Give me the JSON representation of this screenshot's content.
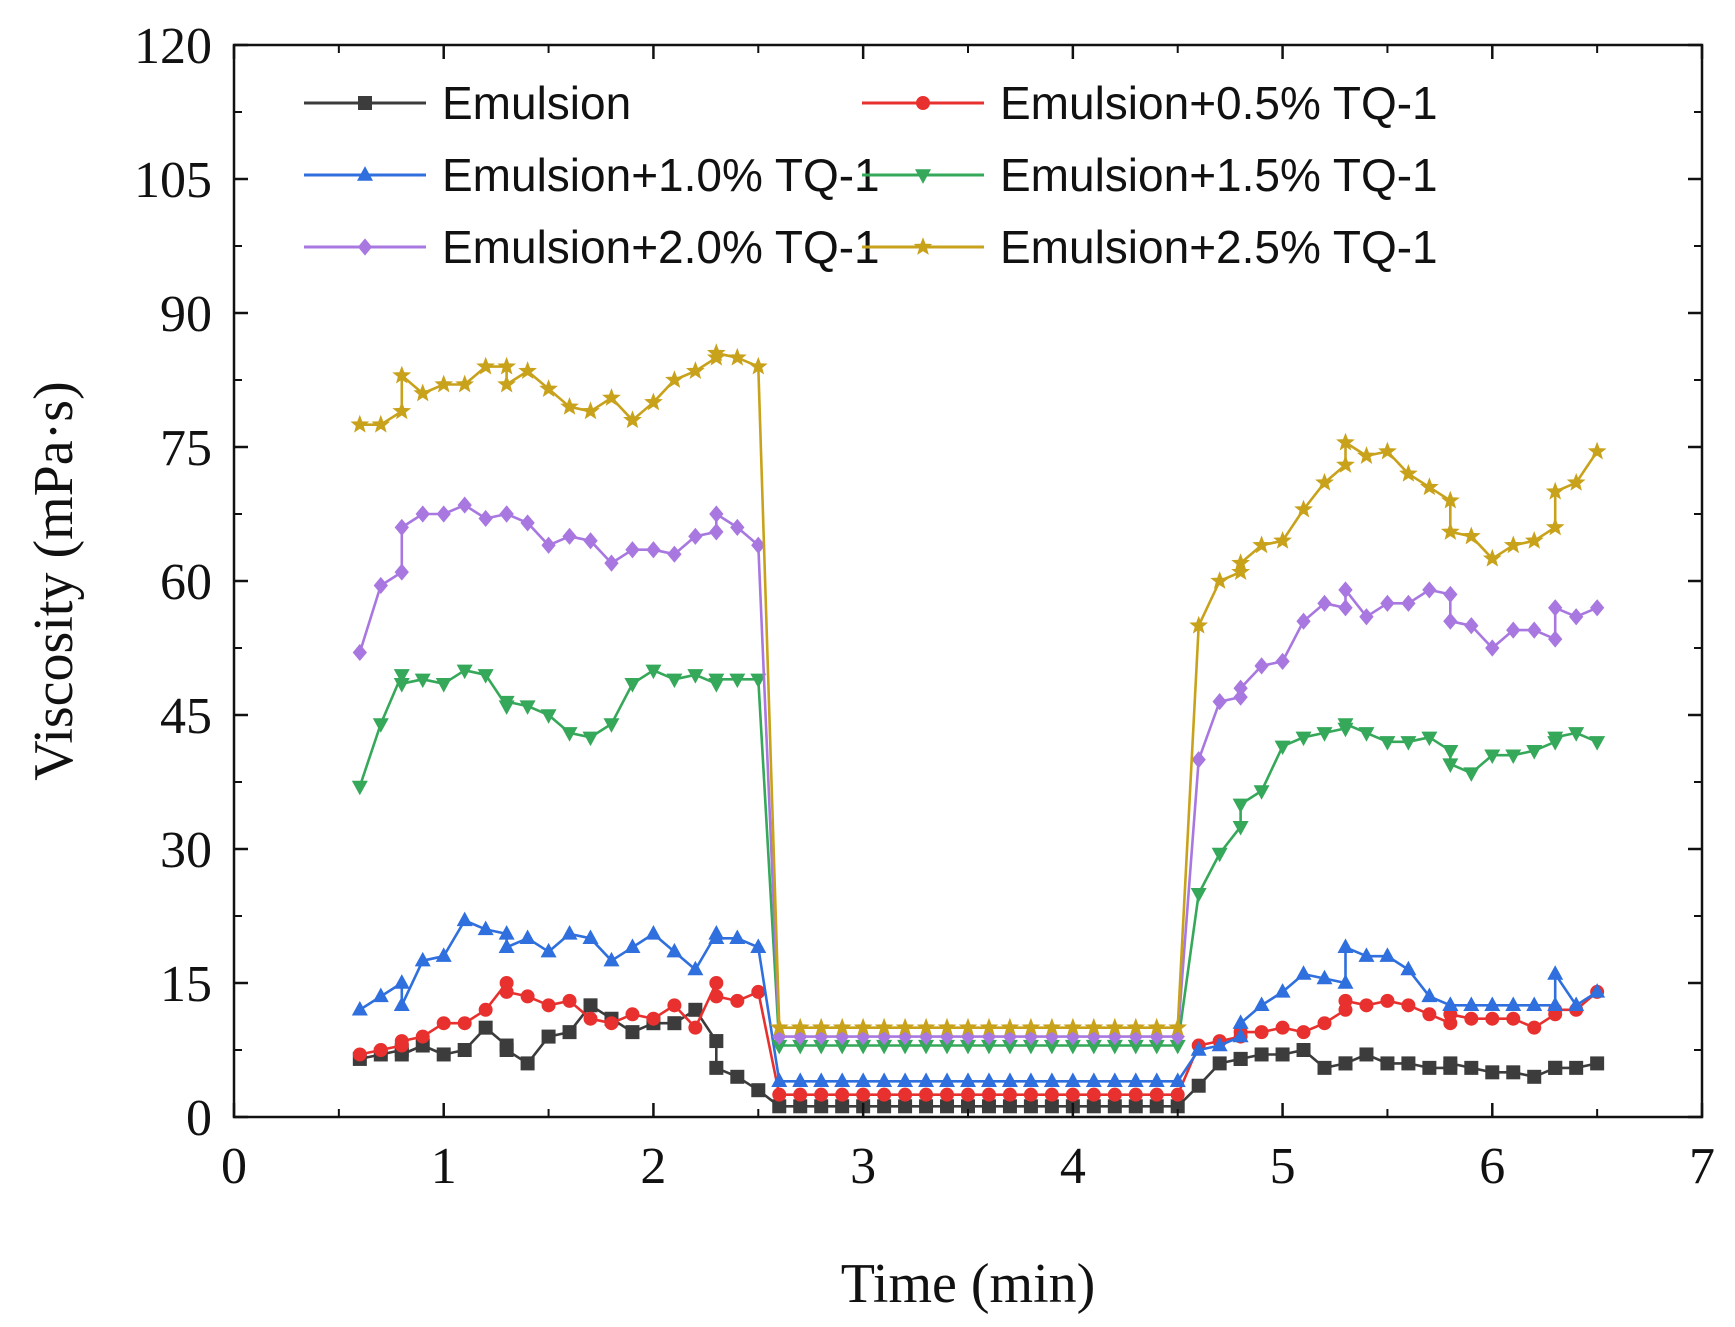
{
  "chart_data": {
    "type": "line",
    "title": "",
    "xlabel": "Time (min)",
    "ylabel": "Viscosity (mPa·s)",
    "xlim": [
      0,
      7
    ],
    "ylim": [
      0,
      120
    ],
    "xticks": [
      0,
      1,
      2,
      3,
      4,
      5,
      6,
      7
    ],
    "yticks": [
      0,
      15,
      30,
      45,
      60,
      75,
      90,
      105,
      120
    ],
    "grid": false,
    "legend_position": "top",
    "x": [
      0.6,
      0.7,
      0.8,
      0.8,
      0.9,
      1.0,
      1.1,
      1.2,
      1.3,
      1.3,
      1.4,
      1.5,
      1.6,
      1.7,
      1.8,
      1.9,
      2.0,
      2.1,
      2.2,
      2.3,
      2.3,
      2.4,
      2.5,
      2.6,
      2.7,
      2.8,
      2.9,
      3.0,
      3.1,
      3.2,
      3.3,
      3.4,
      3.5,
      3.6,
      3.7,
      3.8,
      3.9,
      4.0,
      4.1,
      4.2,
      4.3,
      4.4,
      4.5,
      4.6,
      4.7,
      4.8,
      4.8,
      4.9,
      5.0,
      5.1,
      5.2,
      5.3,
      5.3,
      5.4,
      5.5,
      5.6,
      5.7,
      5.8,
      5.8,
      5.9,
      6.0,
      6.1,
      6.2,
      6.3,
      6.3,
      6.4,
      6.5
    ],
    "series": [
      {
        "name": "Emulsion",
        "color": "#3c3c3c",
        "marker": "square",
        "values": [
          6.5,
          7.0,
          7.5,
          7.0,
          8.0,
          7.0,
          7.5,
          10.0,
          8.0,
          7.5,
          6.0,
          9.0,
          9.5,
          12.5,
          11.0,
          9.5,
          10.5,
          10.5,
          12.0,
          8.5,
          5.5,
          4.5,
          3.0,
          1.2,
          1.2,
          1.2,
          1.2,
          1.2,
          1.2,
          1.2,
          1.2,
          1.2,
          1.2,
          1.2,
          1.2,
          1.2,
          1.2,
          1.2,
          1.2,
          1.2,
          1.2,
          1.2,
          1.2,
          3.5,
          6.0,
          6.5,
          6.5,
          7.0,
          7.0,
          7.5,
          5.5,
          6.0,
          6.0,
          7.0,
          6.0,
          6.0,
          5.5,
          5.5,
          6.0,
          5.5,
          5.0,
          5.0,
          4.5,
          5.5,
          5.5,
          5.5,
          6.0
        ]
      },
      {
        "name": "Emulsion+0.5% TQ-1",
        "color": "#e8312f",
        "marker": "circle",
        "values": [
          7.0,
          7.5,
          8.0,
          8.5,
          9.0,
          10.5,
          10.5,
          12.0,
          15.0,
          14.0,
          13.5,
          12.5,
          13.0,
          11.0,
          10.5,
          11.5,
          11.0,
          12.5,
          10.0,
          15.0,
          13.5,
          13.0,
          14.0,
          2.5,
          2.5,
          2.5,
          2.5,
          2.5,
          2.5,
          2.5,
          2.5,
          2.5,
          2.5,
          2.5,
          2.5,
          2.5,
          2.5,
          2.5,
          2.5,
          2.5,
          2.5,
          2.5,
          2.5,
          8.0,
          8.5,
          9.0,
          9.5,
          9.5,
          10.0,
          9.5,
          10.5,
          12.0,
          13.0,
          12.5,
          13.0,
          12.5,
          11.5,
          10.5,
          11.5,
          11.0,
          11.0,
          11.0,
          10.0,
          11.5,
          12.0,
          12.0,
          14.0
        ]
      },
      {
        "name": "Emulsion+1.0% TQ-1",
        "color": "#2f6fde",
        "marker": "triangle-up",
        "values": [
          12.0,
          13.5,
          15.0,
          12.5,
          17.5,
          18.0,
          22.0,
          21.0,
          20.5,
          19.0,
          20.0,
          18.5,
          20.5,
          20.0,
          17.5,
          19.0,
          20.5,
          18.5,
          16.5,
          20.5,
          20.0,
          20.0,
          19.0,
          4.0,
          4.0,
          4.0,
          4.0,
          4.0,
          4.0,
          4.0,
          4.0,
          4.0,
          4.0,
          4.0,
          4.0,
          4.0,
          4.0,
          4.0,
          4.0,
          4.0,
          4.0,
          4.0,
          4.0,
          7.5,
          8.0,
          9.0,
          10.5,
          12.5,
          14.0,
          16.0,
          15.5,
          15.0,
          19.0,
          18.0,
          18.0,
          16.5,
          13.5,
          12.5,
          12.5,
          12.5,
          12.5,
          12.5,
          12.5,
          12.5,
          16.0,
          12.5,
          14.0
        ]
      },
      {
        "name": "Emulsion+1.5% TQ-1",
        "color": "#35a85a",
        "marker": "triangle-down",
        "values": [
          37.0,
          44.0,
          49.5,
          48.5,
          49.0,
          48.5,
          50.0,
          49.5,
          46.0,
          46.5,
          46.0,
          45.0,
          43.0,
          42.5,
          44.0,
          48.5,
          50.0,
          49.0,
          49.5,
          48.5,
          49.0,
          49.0,
          49.0,
          8.0,
          8.0,
          8.0,
          8.0,
          8.0,
          8.0,
          8.0,
          8.0,
          8.0,
          8.0,
          8.0,
          8.0,
          8.0,
          8.0,
          8.0,
          8.0,
          8.0,
          8.0,
          8.0,
          8.0,
          25.0,
          29.5,
          32.5,
          35.0,
          36.5,
          41.5,
          42.5,
          43.0,
          43.5,
          44.0,
          43.0,
          42.0,
          42.0,
          42.5,
          41.0,
          39.5,
          38.5,
          40.5,
          40.5,
          41.0,
          42.0,
          42.5,
          43.0,
          42.0
        ]
      },
      {
        "name": "Emulsion+2.0% TQ-1",
        "color": "#a878e0",
        "marker": "diamond",
        "values": [
          52.0,
          59.5,
          61.0,
          66.0,
          67.5,
          67.5,
          68.5,
          67.0,
          67.5,
          67.5,
          66.5,
          64.0,
          65.0,
          64.5,
          62.0,
          63.5,
          63.5,
          63.0,
          65.0,
          65.5,
          67.5,
          66.0,
          64.0,
          9.0,
          9.0,
          9.0,
          9.0,
          9.0,
          9.0,
          9.0,
          9.0,
          9.0,
          9.0,
          9.0,
          9.0,
          9.0,
          9.0,
          9.0,
          9.0,
          9.0,
          9.0,
          9.0,
          9.0,
          40.0,
          46.5,
          47.0,
          48.0,
          50.5,
          51.0,
          55.5,
          57.5,
          57.0,
          59.0,
          56.0,
          57.5,
          57.5,
          59.0,
          58.5,
          55.5,
          55.0,
          52.5,
          54.5,
          54.5,
          53.5,
          57.0,
          56.0,
          57.0
        ]
      },
      {
        "name": "Emulsion+2.5% TQ-1",
        "color": "#c9a21c",
        "marker": "star",
        "values": [
          77.5,
          77.5,
          79.0,
          83.0,
          81.0,
          82.0,
          82.0,
          84.0,
          84.0,
          82.0,
          83.5,
          81.5,
          79.5,
          79.0,
          80.5,
          78.0,
          80.0,
          82.5,
          83.5,
          85.0,
          85.5,
          85.0,
          84.0,
          10.0,
          10.0,
          10.0,
          10.0,
          10.0,
          10.0,
          10.0,
          10.0,
          10.0,
          10.0,
          10.0,
          10.0,
          10.0,
          10.0,
          10.0,
          10.0,
          10.0,
          10.0,
          10.0,
          10.0,
          55.0,
          60.0,
          61.0,
          62.0,
          64.0,
          64.5,
          68.0,
          71.0,
          73.0,
          75.5,
          74.0,
          74.5,
          72.0,
          70.5,
          69.0,
          65.5,
          65.0,
          62.5,
          64.0,
          64.5,
          66.0,
          70.0,
          71.0,
          74.5
        ]
      }
    ]
  }
}
